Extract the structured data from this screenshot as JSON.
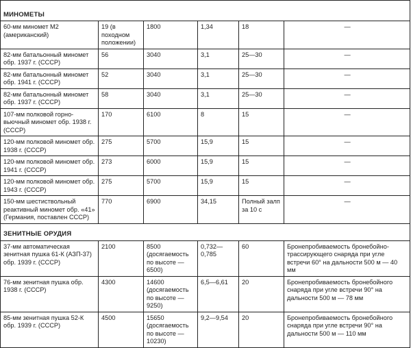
{
  "sections": [
    {
      "title": "МИНОМЕТЫ",
      "rows": [
        [
          "60-мм миномет М2 (американский)",
          "19 (в походном положении)",
          "1800",
          "1,34",
          "18",
          "—"
        ],
        [
          "82-мм батальонный миномет обр. 1937 г. (СССР)",
          "56",
          "3040",
          "3,1",
          "25—30",
          "—"
        ],
        [
          "82-мм батальонный миномет обр. 1941 г. (СССР)",
          "52",
          "3040",
          "3,1",
          "25—30",
          "—"
        ],
        [
          "82-мм батальонный миномет обр. 1937 г. (СССР)",
          "58",
          "3040",
          "3,1",
          "25—30",
          "—"
        ],
        [
          "107-мм полковой горно-вьючный миномет обр. 1938 г. (СССР)",
          "170",
          "6100",
          "8",
          "15",
          "—"
        ],
        [
          "120-мм полковой миномет обр. 1938 г. (СССР)",
          "275",
          "5700",
          "15,9",
          "15",
          "—"
        ],
        [
          "120-мм полковой миномет обр. 1941 г. (СССР)",
          "273",
          "6000",
          "15,9",
          "15",
          "—"
        ],
        [
          "120-мм полковой миномет обр. 1943 г. (СССР)",
          "275",
          "5700",
          "15,9",
          "15",
          "—"
        ],
        [
          "150-мм шестиствольный реактивный миномет обр. «41» (Германия, поставлен СССР)",
          "770",
          "6900",
          "34,15",
          "Полный залп за 10 с",
          "—"
        ]
      ]
    },
    {
      "title": "ЗЕНИТНЫЕ ОРУДИЯ",
      "rows": [
        [
          "37-мм автоматическая зенитная пушка 61-К (АЗП-37) обр. 1939 г. (СССР)",
          "2100",
          "8500 (досягаемость по высоте — 6500)",
          "0,732—0,785",
          "60",
          "Бронепробиваемость бронебойно-трассирующего снаряда при угле встречи 60° на дальности 500 м — 40 мм"
        ],
        [
          "76-мм зенитная пушка обр. 1938 г. (СССР)",
          "4300",
          "14600 (досягаемость по высоте — 9250)",
          "6,5—6,61",
          "20",
          "Бронепробиваемость бронебойного снаряда при угле встречи 90° на дальности 500 м — 78 мм"
        ],
        [
          "85-мм зенитная пушка 52-К обр. 1939 г. (СССР)",
          "4500",
          "15650 (досягаемость по высоте — 10230)",
          "9,2—9,54",
          "20",
          "Бронепробиваемость бронебойного снаряда при угле встречи 90° на дальности 500 м — 110 мм"
        ]
      ]
    }
  ]
}
